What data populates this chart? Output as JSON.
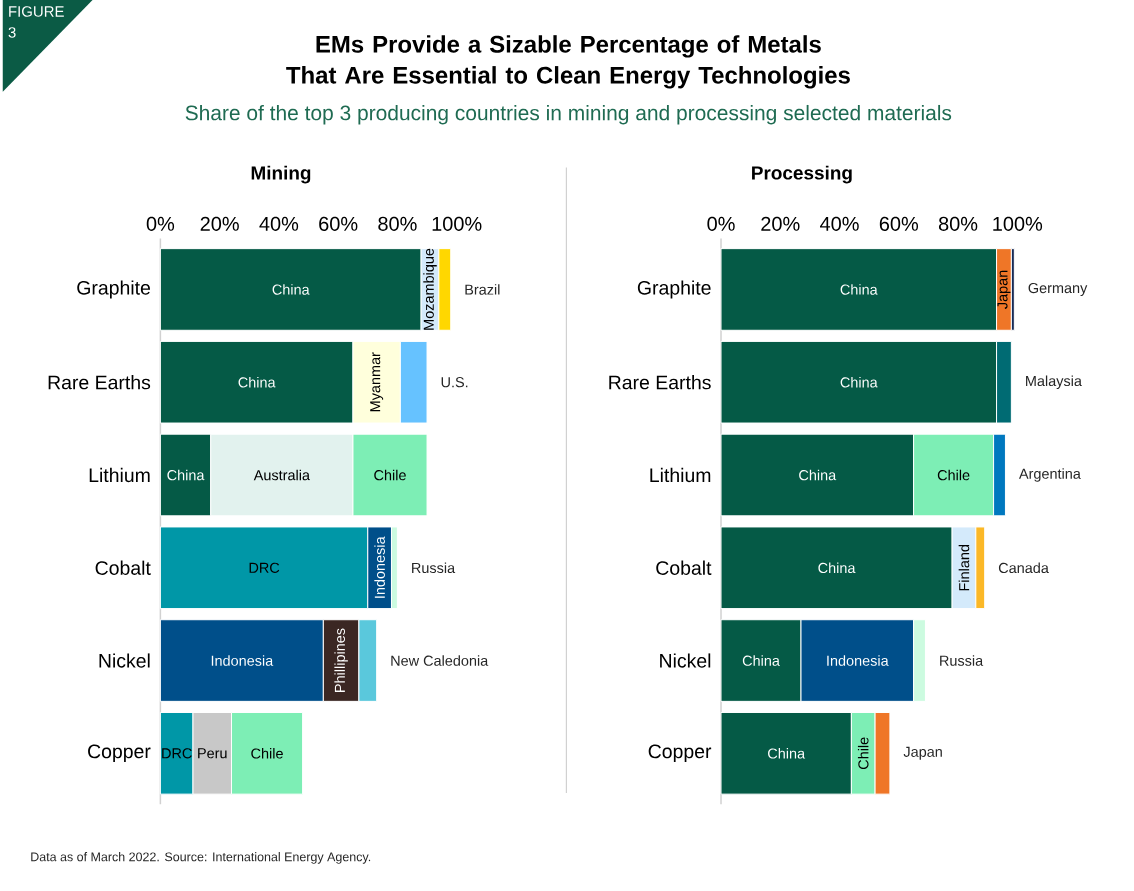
{
  "chart_data": [
    {
      "type": "other",
      "title": "EMs Provide a Sizable Percentage of Metals That Are Essential to Clean Energy Technologies",
      "subtitle": "Share of the top 3 producing countries in mining and processing selected materials",
      "annotations": [
        "FIGURE 3",
        "Data as of March 2022. Source: International Energy Agency."
      ]
    },
    {
      "type": "bar",
      "title": "Mining",
      "orientation": "horizontal",
      "stacked": true,
      "categories": [
        "Graphite",
        "Rare Earths",
        "Lithium",
        "Cobalt",
        "Nickel",
        "Copper"
      ],
      "xlim": [
        0,
        100
      ],
      "xticks": [
        {
          "value": 0,
          "label": "0%"
        },
        {
          "value": 20,
          "label": "20%"
        },
        {
          "value": 40,
          "label": "40%"
        },
        {
          "value": 60,
          "label": "60%"
        },
        {
          "value": 80,
          "label": "80%"
        },
        {
          "value": 100,
          "label": "100%"
        }
      ],
      "series": [
        {
          "values": [
            88,
            65,
            17,
            70,
            55,
            11
          ],
          "colors": [
            "#055a46",
            "#055a46",
            "#055a46",
            "#0097a7",
            "#004f8a",
            "#0097a7"
          ],
          "value_labels": [
            "China",
            "China",
            "China",
            "DRC",
            "Indonesia",
            "DRC"
          ]
        },
        {
          "values": [
            6,
            16,
            48,
            8,
            12,
            13
          ],
          "colors": [
            "#d4eafb",
            "#ffffdc",
            "#e2f2ee",
            "#004f8a",
            "#3b2723",
            "#c8c8c8"
          ],
          "value_labels": [
            "Mozambique",
            "Myanmar",
            "Australia",
            "Indonesia",
            "Phillipines",
            "Peru"
          ]
        },
        {
          "values": [
            4,
            9,
            25,
            2,
            6,
            24
          ],
          "colors": [
            "#ffd700",
            "#66c2ff",
            "#7deeb5",
            "#ccfbe0",
            "#5ac8dc",
            "#7deeb5"
          ],
          "value_labels": [
            "Brazil",
            "U.S.",
            "Chile",
            "Russia",
            "New Caledonia",
            "Chile"
          ]
        }
      ]
    },
    {
      "type": "bar",
      "title": "Processing",
      "orientation": "horizontal",
      "stacked": true,
      "categories": [
        "Graphite",
        "Rare Earths",
        "Lithium",
        "Cobalt",
        "Nickel",
        "Copper"
      ],
      "xlim": [
        0,
        100
      ],
      "xticks": [
        {
          "value": 0,
          "label": "0%"
        },
        {
          "value": 20,
          "label": "20%"
        },
        {
          "value": 40,
          "label": "40%"
        },
        {
          "value": 60,
          "label": "60%"
        },
        {
          "value": 80,
          "label": "80%"
        },
        {
          "value": 100,
          "label": "100%"
        }
      ],
      "series": [
        {
          "values": [
            93,
            93,
            65,
            78,
            27,
            44
          ],
          "colors": [
            "#055a46",
            "#055a46",
            "#055a46",
            "#055a46",
            "#055a46",
            "#055a46"
          ],
          "value_labels": [
            "China",
            "China",
            "China",
            "China",
            "China",
            "China"
          ]
        },
        {
          "values": [
            5,
            5,
            27,
            8,
            38,
            8
          ],
          "colors": [
            "#ef7627",
            "#006b73",
            "#7deeb5",
            "#d4eafb",
            "#004f8a",
            "#7deeb5"
          ],
          "value_labels": [
            "Japan",
            "Malaysia",
            "Chile",
            "Finland",
            "Indonesia",
            "Chile"
          ]
        },
        {
          "values": [
            1,
            null,
            4,
            3,
            4,
            5
          ],
          "colors": [
            "#172b56",
            null,
            "#0078bf",
            "#fbb827",
            "#ccfbe0",
            "#ef7627"
          ],
          "value_labels": [
            "Germany",
            null,
            "Argentina",
            "Canada",
            "Russia",
            "Japan"
          ]
        }
      ]
    }
  ]
}
